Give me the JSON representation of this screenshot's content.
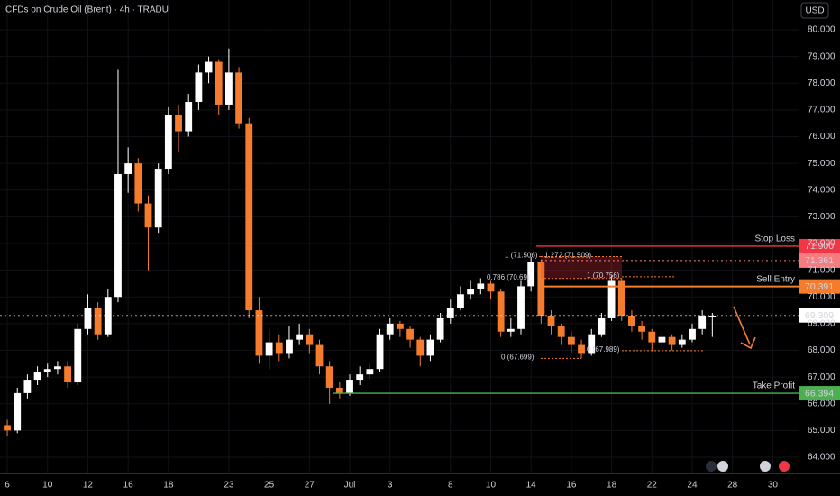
{
  "chart_data": {
    "type": "candlestick",
    "title": "CFDs on Crude Oil (Brent) · 4h · TRADU",
    "currency": "USD",
    "up_color": "#ffffff",
    "down_color": "#f57c2c",
    "xlim": [
      -0.36,
      39.28
    ],
    "xticks": [
      {
        "value": 0,
        "label": "6"
      },
      {
        "value": 2,
        "label": "10"
      },
      {
        "value": 4,
        "label": "12"
      },
      {
        "value": 6,
        "label": "16"
      },
      {
        "value": 8,
        "label": "18"
      },
      {
        "value": 11,
        "label": "23"
      },
      {
        "value": 13,
        "label": "25"
      },
      {
        "value": 15,
        "label": "27"
      },
      {
        "value": 17,
        "label": "Jul"
      },
      {
        "value": 19,
        "label": "3"
      },
      {
        "value": 22,
        "label": "8"
      },
      {
        "value": 24,
        "label": "10"
      },
      {
        "value": 26,
        "label": "14"
      },
      {
        "value": 28,
        "label": "16"
      },
      {
        "value": 30,
        "label": "18"
      },
      {
        "value": 32,
        "label": "22"
      },
      {
        "value": 34,
        "label": "24"
      },
      {
        "value": 36,
        "label": "28"
      },
      {
        "value": 38,
        "label": "30"
      }
    ],
    "ylim": [
      63.392,
      81.114
    ],
    "yticks": [
      {
        "value": 64,
        "label": "64.000"
      },
      {
        "value": 65,
        "label": "65.000"
      },
      {
        "value": 66,
        "label": "66.000"
      },
      {
        "value": 67,
        "label": "67.000"
      },
      {
        "value": 68,
        "label": "68.000"
      },
      {
        "value": 69,
        "label": "69.000"
      },
      {
        "value": 70,
        "label": "70.000"
      },
      {
        "value": 71,
        "label": "71.000"
      },
      {
        "value": 72,
        "label": "72.000"
      },
      {
        "value": 73,
        "label": "73.000"
      },
      {
        "value": 74,
        "label": "74.000"
      },
      {
        "value": 75,
        "label": "75.000"
      },
      {
        "value": 76,
        "label": "76.000"
      },
      {
        "value": 77,
        "label": "77.000"
      },
      {
        "value": 78,
        "label": "78.000"
      },
      {
        "value": 79,
        "label": "79.000"
      },
      {
        "value": 80,
        "label": "80.000"
      }
    ],
    "grid": true,
    "x": [
      0,
      0.5,
      1,
      1.5,
      2,
      2.5,
      3,
      3.5,
      4,
      4.5,
      5,
      5.5,
      6,
      6.5,
      7,
      7.5,
      8,
      8.5,
      9,
      9.5,
      10,
      10.5,
      11,
      11.5,
      12,
      12.5,
      13,
      13.5,
      14,
      14.5,
      15,
      15.5,
      16,
      16.5,
      17,
      17.5,
      18,
      18.5,
      19,
      19.5,
      20,
      20.5,
      21,
      21.5,
      22,
      22.5,
      23,
      23.5,
      24,
      24.5,
      25,
      25.5,
      26,
      26.5,
      27,
      27.5,
      28,
      28.5,
      29,
      29.5,
      30,
      30.5,
      31,
      31.5,
      32,
      32.5,
      33,
      33.5,
      34,
      34.5,
      35
    ],
    "open": [
      65.2,
      65.0,
      66.4,
      66.9,
      67.2,
      67.3,
      67.4,
      66.8,
      68.8,
      69.6,
      68.6,
      70.0,
      74.6,
      75.0,
      73.5,
      72.6,
      74.8,
      76.8,
      76.2,
      77.3,
      78.4,
      78.8,
      77.2,
      78.4,
      76.5,
      69.5,
      67.8,
      68.3,
      67.9,
      68.4,
      68.6,
      68.2,
      67.4,
      66.6,
      66.4,
      66.9,
      67.1,
      67.3,
      68.6,
      69.0,
      68.8,
      68.4,
      67.8,
      68.4,
      69.2,
      69.6,
      70.1,
      70.3,
      70.5,
      70.2,
      68.7,
      68.8,
      70.4,
      71.3,
      69.3,
      68.9,
      68.5,
      68.2,
      67.9,
      68.6,
      69.2,
      70.6,
      69.3,
      68.9,
      68.7,
      68.3,
      68.5,
      68.2,
      68.4,
      68.8,
      69.3
    ],
    "high": [
      65.4,
      66.6,
      67.1,
      67.4,
      67.5,
      67.6,
      67.6,
      69.0,
      70.1,
      69.8,
      70.3,
      78.5,
      75.6,
      75.2,
      73.8,
      75.0,
      77.1,
      77.2,
      77.6,
      78.7,
      79.0,
      78.9,
      79.3,
      78.6,
      76.7,
      70.0,
      68.8,
      68.6,
      68.9,
      69.0,
      68.8,
      68.4,
      67.6,
      66.8,
      67.1,
      67.4,
      67.5,
      68.8,
      69.2,
      69.1,
      68.9,
      68.5,
      68.6,
      69.4,
      69.9,
      70.4,
      70.6,
      70.7,
      70.6,
      70.3,
      69.2,
      70.6,
      71.5,
      71.4,
      69.5,
      69.0,
      68.7,
      68.4,
      68.8,
      69.4,
      70.8,
      70.7,
      69.5,
      69.1,
      68.8,
      68.7,
      68.6,
      68.6,
      69.0,
      69.5,
      69.4
    ],
    "low": [
      64.8,
      64.9,
      66.2,
      66.7,
      67.0,
      67.1,
      66.6,
      66.7,
      68.6,
      68.4,
      68.5,
      69.8,
      73.9,
      73.2,
      71.0,
      72.4,
      74.6,
      75.4,
      76.0,
      77.0,
      78.0,
      76.8,
      77.0,
      76.3,
      69.2,
      67.5,
      67.3,
      67.6,
      67.7,
      68.2,
      67.9,
      67.1,
      66.0,
      66.2,
      66.3,
      66.7,
      66.9,
      67.2,
      68.4,
      68.5,
      68.1,
      67.4,
      67.6,
      68.3,
      69.0,
      69.5,
      69.9,
      70.1,
      69.9,
      68.5,
      68.5,
      68.6,
      70.2,
      69.0,
      68.6,
      68.2,
      67.9,
      67.7,
      67.8,
      68.5,
      69.1,
      69.1,
      68.7,
      68.4,
      68.0,
      68.0,
      68.0,
      68.1,
      68.3,
      68.6,
      68.5
    ],
    "close": [
      65.0,
      66.4,
      66.9,
      67.2,
      67.3,
      67.4,
      66.8,
      68.8,
      69.6,
      68.6,
      70.0,
      74.6,
      75.0,
      73.5,
      72.6,
      74.8,
      76.8,
      76.2,
      77.3,
      78.4,
      78.8,
      77.2,
      78.4,
      76.5,
      69.5,
      67.8,
      68.3,
      67.9,
      68.4,
      68.6,
      68.2,
      67.4,
      66.6,
      66.4,
      66.9,
      67.1,
      67.3,
      68.6,
      69.0,
      68.8,
      68.4,
      67.8,
      68.4,
      69.2,
      69.6,
      70.1,
      70.3,
      70.5,
      70.2,
      68.7,
      68.8,
      70.4,
      71.3,
      69.3,
      68.9,
      68.5,
      68.2,
      67.9,
      68.6,
      69.2,
      70.6,
      69.3,
      68.9,
      68.7,
      68.3,
      68.5,
      68.2,
      68.4,
      68.8,
      69.3,
      69.3
    ],
    "levels": [
      {
        "name": "Stop Loss",
        "value": 71.9,
        "value_label": "71.900",
        "color": "#f23645"
      },
      {
        "value": 71.361,
        "value_label": "71.361",
        "color": "#f77c80"
      },
      {
        "name": "Sell Entry",
        "value": 70.391,
        "value_label": "70.391",
        "color": "#f57c2c"
      },
      {
        "value": 69.309,
        "value_label": "69.309",
        "color": "#ffffff"
      },
      {
        "name": "Take Profit",
        "value": 66.394,
        "value_label": "66.394",
        "color": "#4caf50"
      }
    ],
    "annotations": [
      {
        "text": "1 (71.506)",
        "value": 71.506
      },
      {
        "text": "1.272 (71.509)",
        "value": 71.509
      },
      {
        "text": "0.786 (70.69)",
        "value": 70.69
      },
      {
        "text": "1 (70.756)",
        "value": 70.756
      },
      {
        "text": "0 (67.989)",
        "value": 67.989
      },
      {
        "text": "0 (67.699)",
        "value": 67.699
      }
    ]
  }
}
